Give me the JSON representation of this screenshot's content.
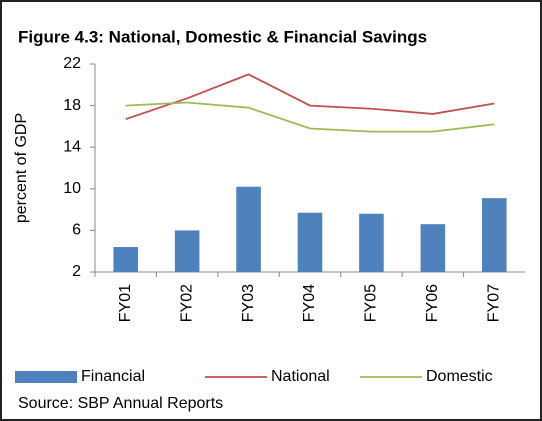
{
  "chart_data": {
    "type": "bar",
    "title": "Figure 4.3: National, Domestic & Financial Savings",
    "y_label": "percent of GDP",
    "categories": [
      "FY01",
      "FY02",
      "FY03",
      "FY04",
      "FY05",
      "FY06",
      "FY07"
    ],
    "series": [
      {
        "name": "Financial",
        "type": "bar",
        "color": "#4f81bd",
        "values": [
          4.4,
          6.0,
          10.2,
          7.7,
          7.6,
          6.6,
          9.1
        ]
      },
      {
        "name": "National",
        "type": "line",
        "color": "#c0504d",
        "values": [
          16.7,
          18.7,
          21.0,
          18.0,
          17.7,
          17.2,
          18.2
        ]
      },
      {
        "name": "Domestic",
        "type": "line",
        "color": "#9bbb59",
        "values": [
          18.0,
          18.3,
          17.8,
          15.8,
          15.5,
          15.5,
          16.2
        ]
      }
    ],
    "ylim": [
      2,
      22
    ],
    "yticks": [
      2,
      6,
      10,
      14,
      18,
      22
    ],
    "legend": "bottom",
    "source": "Source: SBP Annual Reports"
  }
}
